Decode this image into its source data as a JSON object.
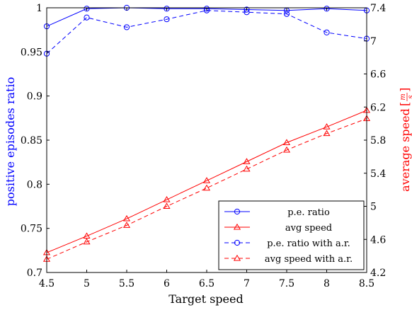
{
  "chart_data": {
    "type": "line",
    "title": "",
    "xlabel": "Target speed",
    "ylabel_left": "positive episodes ratio",
    "ylabel_right_prefix": "average speed ",
    "ylabel_right_unit_num": "m",
    "ylabel_right_unit_den": "s",
    "xlim": [
      4.5,
      8.5
    ],
    "ylim_left": [
      0.7,
      1.0
    ],
    "ylim_right": [
      4.2,
      7.4
    ],
    "x": [
      4.5,
      5,
      5.5,
      6,
      6.5,
      7,
      7.5,
      8,
      8.5
    ],
    "x_ticks": [
      "4.5",
      "5",
      "5.5",
      "6",
      "6.5",
      "7",
      "7.5",
      "8",
      "8.5"
    ],
    "y_ticks_left": [
      "0.7",
      "0.75",
      "0.8",
      "0.85",
      "0.9",
      "0.95",
      "1"
    ],
    "y_ticks_right": [
      "4.2",
      "4.6",
      "5",
      "5.4",
      "5.8",
      "6.2",
      "6.6",
      "7",
      "7.4"
    ],
    "legend_position": "bottom-right",
    "series": [
      {
        "name": "p.e. ratio",
        "axis": "left",
        "marker": "circle",
        "dash": false,
        "color": "#0000ff",
        "values": [
          0.979,
          0.999,
          1.0,
          0.999,
          0.999,
          0.998,
          0.997,
          0.999,
          0.997
        ]
      },
      {
        "name": "avg speed",
        "axis": "right",
        "marker": "triangle",
        "dash": false,
        "color": "#ff0000",
        "values": [
          4.44,
          4.64,
          4.85,
          5.08,
          5.31,
          5.54,
          5.77,
          5.96,
          6.16
        ]
      },
      {
        "name": "p.e. ratio with a.r.",
        "axis": "left",
        "marker": "circle",
        "dash": true,
        "color": "#0000ff",
        "values": [
          0.948,
          0.989,
          0.978,
          0.987,
          0.997,
          0.995,
          0.993,
          0.972,
          0.965
        ]
      },
      {
        "name": "avg speed with a.r.",
        "axis": "right",
        "marker": "triangle",
        "dash": true,
        "color": "#ff0000",
        "values": [
          4.36,
          4.57,
          4.77,
          5.0,
          5.22,
          5.45,
          5.68,
          5.88,
          6.06
        ]
      }
    ]
  }
}
